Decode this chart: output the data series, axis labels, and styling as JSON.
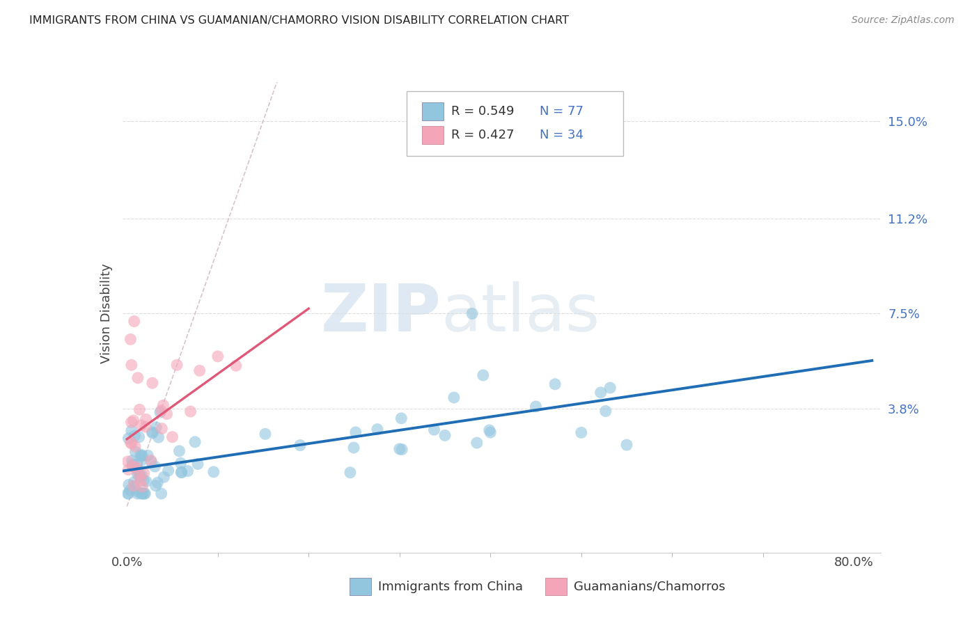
{
  "title": "IMMIGRANTS FROM CHINA VS GUAMANIAN/CHAMORRO VISION DISABILITY CORRELATION CHART",
  "source": "Source: ZipAtlas.com",
  "ylabel_label": "Vision Disability",
  "right_yticks": [
    0.038,
    0.075,
    0.112,
    0.15
  ],
  "right_ytick_labels": [
    "3.8%",
    "7.5%",
    "11.2%",
    "15.0%"
  ],
  "xlim": [
    -0.005,
    0.83
  ],
  "ylim": [
    -0.018,
    0.168
  ],
  "blue_color": "#92c5de",
  "pink_color": "#f4a6b8",
  "blue_line_color": "#1f6eb5",
  "pink_line_color": "#e05878",
  "diag_color": "#d0b8c8",
  "background_color": "#ffffff",
  "watermark_zip": "ZIP",
  "watermark_atlas": "atlas",
  "grid_color": "#dddddd"
}
